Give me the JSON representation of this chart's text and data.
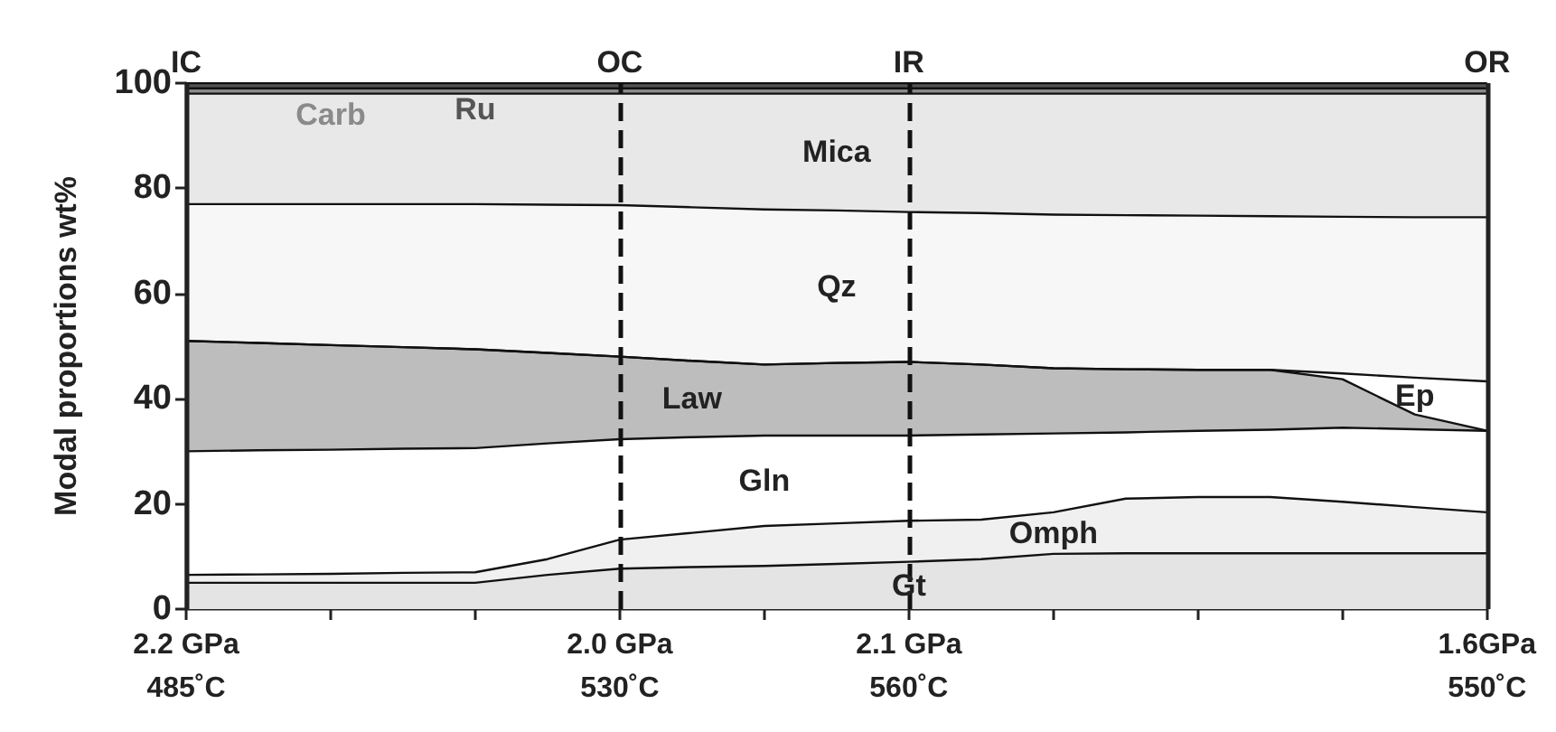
{
  "chart_data": {
    "type": "area",
    "stacked": true,
    "ylabel": "Modal proportions wt%",
    "categories": [
      "2.2 GPa\n485˚C",
      null,
      null,
      null,
      null,
      null,
      "2.0 GPa\n530˚C",
      null,
      null,
      null,
      "2.1 GPa\n560˚C",
      null,
      null,
      null,
      null,
      null,
      null,
      null,
      "1.6GPa\n550˚C"
    ],
    "ylim": [
      0,
      100
    ],
    "yticks": [
      0,
      20,
      40,
      60,
      80,
      100
    ],
    "grid": false,
    "legend": false,
    "series": [
      {
        "name": "Gt",
        "color": "#e4e4e4",
        "values": [
          5,
          5,
          5,
          5,
          5,
          6.5,
          7.7,
          8,
          8.2,
          8.6,
          9,
          9.5,
          10.5,
          10.6,
          10.6,
          10.6,
          10.6,
          10.6,
          10.6
        ]
      },
      {
        "name": "Omph",
        "color": "#f0f0f0",
        "values": [
          1.5,
          1.6,
          1.7,
          1.9,
          2,
          3,
          5.5,
          6.5,
          7.6,
          7.7,
          7.8,
          7.5,
          7.9,
          10.4,
          10.7,
          10.7,
          9.8,
          8.8,
          7.8
        ]
      },
      {
        "name": "Gln",
        "color": "#ffffff",
        "values": [
          23.5,
          23.6,
          23.6,
          23.6,
          23.6,
          22,
          19.1,
          18.2,
          17.2,
          16.7,
          16.2,
          16.2,
          15,
          12.6,
          12.6,
          12.8,
          14.1,
          14.8,
          15.5
        ]
      },
      {
        "name": "Law",
        "color": "#bdbdbd",
        "values": [
          21,
          20.4,
          19.9,
          19.3,
          18.8,
          17.2,
          15.7,
          14.5,
          13.5,
          13.8,
          14,
          13.3,
          12.4,
          12,
          11.6,
          11.4,
          9.2,
          2.8,
          0
        ]
      },
      {
        "name": "Ep",
        "color": "#ffffff",
        "values": [
          0,
          0,
          0,
          0,
          0,
          0,
          0,
          0,
          0,
          0,
          0,
          0,
          0,
          0,
          0,
          0,
          1.1,
          7,
          9.4
        ]
      },
      {
        "name": "Qz",
        "color": "#f7f7f7",
        "values": [
          26,
          26.4,
          26.8,
          27.2,
          27.6,
          28.2,
          28.8,
          29.2,
          29.5,
          29,
          28.5,
          28.8,
          29.2,
          29.3,
          29.3,
          29.2,
          29.8,
          30.5,
          31.2
        ]
      },
      {
        "name": "Mica",
        "color": "#e8e8e8",
        "values": [
          21,
          21,
          21,
          21,
          21,
          21.1,
          21.2,
          21.6,
          22,
          22.2,
          22.5,
          22.7,
          23,
          23.1,
          23.2,
          23.3,
          23.4,
          23.5,
          23.5
        ]
      },
      {
        "name": "Carb",
        "color": "#8a8a8a",
        "values": [
          1,
          1,
          1,
          1,
          1,
          1,
          1,
          1,
          1,
          1,
          1,
          1,
          1,
          1,
          1,
          1,
          1,
          1,
          1
        ]
      },
      {
        "name": "Ru",
        "color": "#555555",
        "values": [
          1,
          1,
          1,
          1,
          1,
          1,
          1,
          1,
          1,
          1,
          1,
          1,
          1,
          1,
          1,
          1,
          1,
          1,
          1
        ]
      }
    ],
    "ref_lines": [
      {
        "axis": "x",
        "value": "2.2 GPa\n485˚C",
        "label": "IC",
        "line_style": "solid",
        "color": "#222222"
      },
      {
        "axis": "x",
        "value": "2.0 GPa\n530˚C",
        "label": "OC",
        "line_style": "dashed",
        "color": "#111111"
      },
      {
        "axis": "x",
        "value": "2.1 GPa\n560˚C",
        "label": "IR",
        "line_style": "dashed",
        "color": "#111111"
      },
      {
        "axis": "x",
        "value": "1.6GPa\n550˚C",
        "label": "OR",
        "line_style": "solid",
        "color": "#222222"
      }
    ]
  }
}
